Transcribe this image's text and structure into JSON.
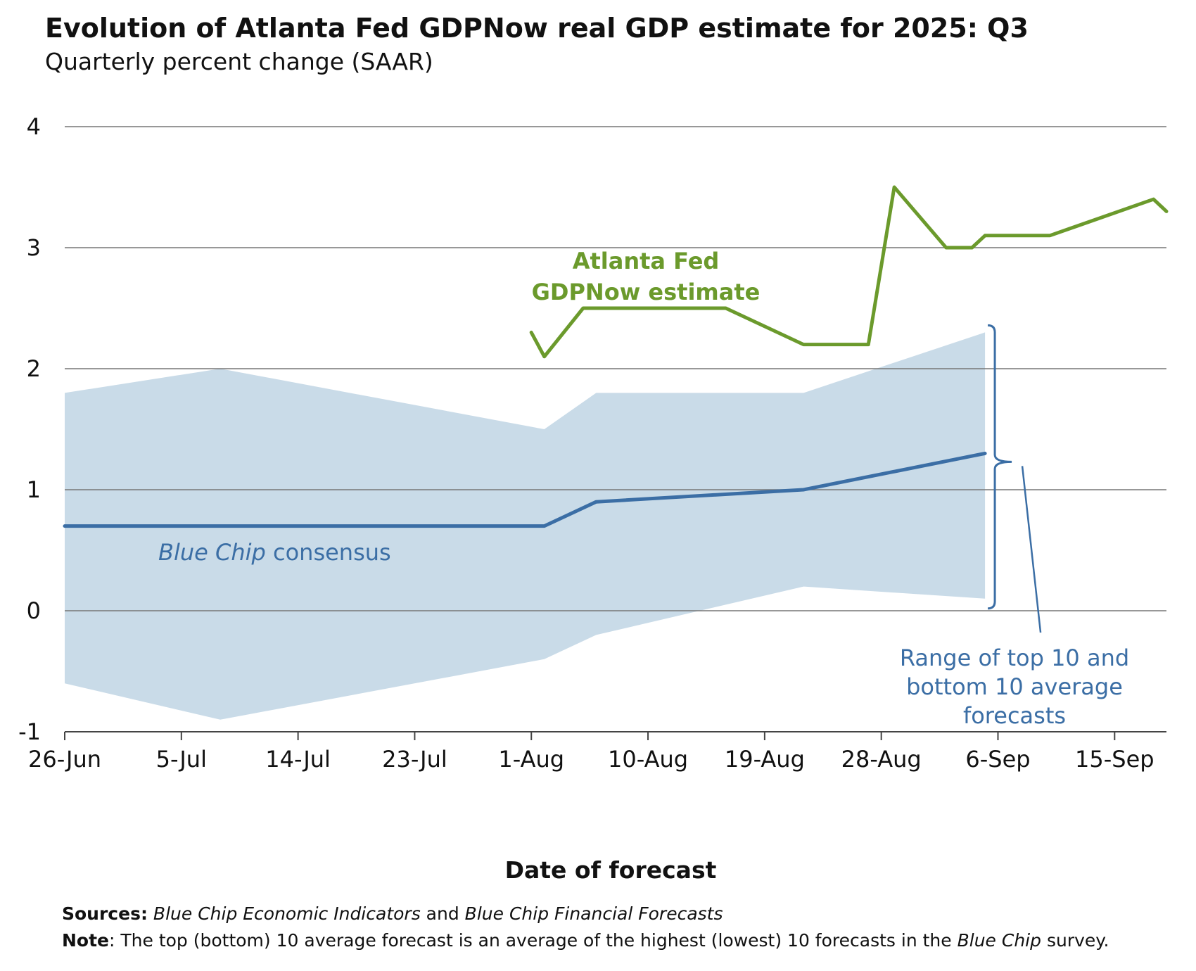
{
  "header": {
    "title": "Evolution of Atlanta Fed GDPNow real GDP estimate for 2025: Q3",
    "subtitle": "Quarterly percent change (SAAR)"
  },
  "chart_data": {
    "type": "line",
    "xlabel": "Date of forecast",
    "ylim": [
      -1,
      4
    ],
    "yticks": [
      -1,
      0,
      1,
      2,
      3,
      4
    ],
    "ytick_labels": [
      "-1",
      "0",
      "1",
      "2",
      "3",
      "4"
    ],
    "xlim": [
      "2025-06-26",
      "2025-09-19"
    ],
    "xticks": [
      "2025-06-26",
      "2025-07-05",
      "2025-07-14",
      "2025-07-23",
      "2025-08-01",
      "2025-08-10",
      "2025-08-19",
      "2025-08-28",
      "2025-09-06",
      "2025-09-15"
    ],
    "xtick_labels": [
      "26-Jun",
      "5-Jul",
      "14-Jul",
      "23-Jul",
      "1-Aug",
      "10-Aug",
      "19-Aug",
      "28-Aug",
      "6-Sep",
      "15-Sep"
    ],
    "grid": "horizontal",
    "band": {
      "x": [
        "2025-06-26",
        "2025-07-08",
        "2025-08-02",
        "2025-08-06",
        "2025-08-22",
        "2025-09-05"
      ],
      "upper": [
        1.8,
        2.0,
        1.5,
        1.8,
        1.8,
        2.3
      ],
      "lower": [
        -0.6,
        -0.9,
        -0.4,
        -0.2,
        0.2,
        0.1
      ],
      "color": "#c9dbe8"
    },
    "series": [
      {
        "key": "consensus",
        "x": [
          "2025-06-26",
          "2025-07-08",
          "2025-08-02",
          "2025-08-06",
          "2025-08-22",
          "2025-09-05"
        ],
        "y": [
          0.7,
          0.7,
          0.7,
          0.9,
          1.0,
          1.3
        ],
        "color": "#3b6ea5"
      },
      {
        "key": "gdpnow",
        "x": [
          "2025-08-01",
          "2025-08-02",
          "2025-08-05",
          "2025-08-16",
          "2025-08-22",
          "2025-08-26",
          "2025-08-27",
          "2025-08-29",
          "2025-09-02",
          "2025-09-04",
          "2025-09-05",
          "2025-09-10",
          "2025-09-18",
          "2025-09-19"
        ],
        "y": [
          2.3,
          2.1,
          2.5,
          2.5,
          2.2,
          2.2,
          2.2,
          3.5,
          3.0,
          3.0,
          3.1,
          3.1,
          3.4,
          3.3
        ],
        "color": "#6b9a2c"
      }
    ],
    "annotations": {
      "gdpnow_line1": "Atlanta Fed",
      "gdpnow_line2": "GDPNow estimate",
      "consensus_italic": "Blue Chip",
      "consensus_rest": " consensus",
      "range_line1": "Range of top 10 and",
      "range_line2": "bottom 10 average",
      "range_line3": "forecasts"
    }
  },
  "footer": {
    "sources_label": "Sources:",
    "sources_italic1": "Blue Chip Economic Indicators",
    "sources_and": " and ",
    "sources_italic2": "Blue Chip Financial Forecasts",
    "note_label": "Note",
    "note_text1": ": The top (bottom) 10 average forecast is an average of the highest (lowest) 10 forecasts in the ",
    "note_italic": "Blue Chip",
    "note_text2": " survey."
  }
}
